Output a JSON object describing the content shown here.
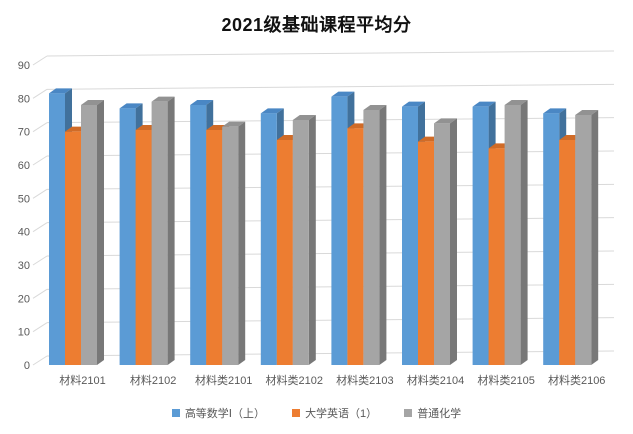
{
  "chart_data": {
    "type": "bar",
    "variant": "3d-clustered-column",
    "title": "2021级基础课程平均分",
    "categories": [
      "材料2101",
      "材料2102",
      "材料类2101",
      "材料类2102",
      "材料类2103",
      "材料类2104",
      "材料类2105",
      "材料类2106"
    ],
    "series": [
      {
        "name": "高等数学Ⅰ（上）",
        "color": "#5B9BD5",
        "side_color": "#41719C",
        "top_color": "#4A87C4",
        "values": [
          81.5,
          77,
          78,
          75.5,
          80.5,
          77.5,
          77.5,
          75.5
        ]
      },
      {
        "name": "大学英语（1）",
        "color": "#ED7D31",
        "side_color": "#AE5A21",
        "top_color": "#D06B27",
        "values": [
          70,
          70.5,
          70.5,
          67.5,
          71,
          67,
          65,
          67.5
        ]
      },
      {
        "name": "普通化学",
        "color": "#A5A5A5",
        "side_color": "#787878",
        "top_color": "#929292",
        "values": [
          78,
          79,
          71.5,
          73.5,
          76.5,
          72.5,
          78,
          75
        ]
      }
    ],
    "y_axis": {
      "min": 0,
      "max": 90,
      "step": 10,
      "ticks": [
        0,
        10,
        20,
        30,
        40,
        50,
        60,
        70,
        80,
        90
      ]
    },
    "grid": true,
    "legend_position": "bottom",
    "style": {
      "gridline_color": "#D9D9D9",
      "axis_label_color": "#595959",
      "title_color": "#111111",
      "background": "#FFFFFF"
    }
  }
}
